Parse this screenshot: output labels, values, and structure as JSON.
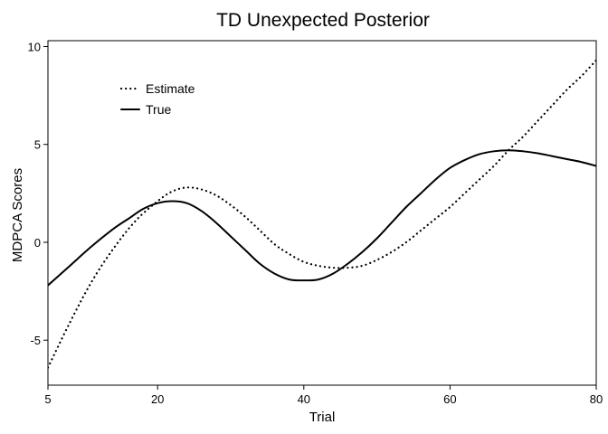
{
  "chart_data": {
    "type": "line",
    "title": "TD Unexpected Posterior",
    "xlabel": "Trial",
    "ylabel": "MDPCA Scores",
    "xlim": [
      5,
      80
    ],
    "ylim": [
      -7.3,
      10.3
    ],
    "xticks": [
      5,
      20,
      40,
      60,
      80
    ],
    "yticks": [
      -5,
      0,
      5,
      10
    ],
    "grid": false,
    "legend_position": "top-left",
    "series": [
      {
        "name": "Estimate",
        "style": "dotted",
        "color": "#000000",
        "x": [
          5,
          8,
          11,
          14,
          17,
          20,
          22,
          24,
          26,
          28,
          30,
          32,
          34,
          36,
          38,
          40,
          42,
          44,
          46,
          48,
          50,
          52,
          54,
          56,
          58,
          60,
          62,
          64,
          66,
          68,
          70,
          72,
          74,
          76,
          78,
          80
        ],
        "y": [
          -6.4,
          -4.1,
          -2.0,
          -0.3,
          1.1,
          2.1,
          2.6,
          2.8,
          2.7,
          2.4,
          1.9,
          1.3,
          0.6,
          -0.1,
          -0.6,
          -1.0,
          -1.2,
          -1.3,
          -1.3,
          -1.2,
          -0.9,
          -0.5,
          0.0,
          0.6,
          1.2,
          1.8,
          2.5,
          3.2,
          3.9,
          4.7,
          5.4,
          6.2,
          7.0,
          7.8,
          8.5,
          9.3
        ]
      },
      {
        "name": "True",
        "style": "solid",
        "color": "#000000",
        "x": [
          5,
          8,
          11,
          14,
          16,
          18,
          20,
          22,
          24,
          26,
          28,
          30,
          32,
          34,
          36,
          38,
          40,
          42,
          44,
          46,
          48,
          50,
          52,
          54,
          56,
          58,
          60,
          62,
          64,
          66,
          68,
          70,
          72,
          74,
          76,
          78,
          80
        ],
        "y": [
          -2.2,
          -1.2,
          -0.2,
          0.7,
          1.2,
          1.7,
          2.0,
          2.1,
          2.0,
          1.6,
          1.0,
          0.3,
          -0.4,
          -1.1,
          -1.6,
          -1.9,
          -1.95,
          -1.9,
          -1.6,
          -1.1,
          -0.5,
          0.2,
          1.0,
          1.8,
          2.5,
          3.2,
          3.8,
          4.2,
          4.5,
          4.65,
          4.7,
          4.65,
          4.55,
          4.4,
          4.25,
          4.1,
          3.9
        ]
      }
    ]
  }
}
